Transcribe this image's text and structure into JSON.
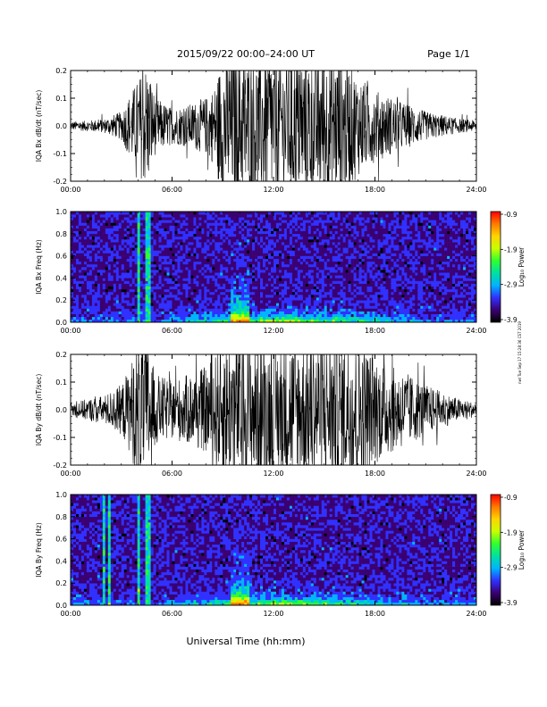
{
  "header": {
    "title": "2015/09/22   00:00–24:00 UT",
    "page": "Page 1/1"
  },
  "side_stamp": "nwl Tue Sep 17 15:28:36 CST 2019",
  "xlabel_main": "Universal Time (hh:mm)",
  "colors": {
    "colorbar_stops": [
      "#000000",
      "#3a0072",
      "#3030ff",
      "#00b4ff",
      "#00e0a0",
      "#30ff30",
      "#c8ff00",
      "#ffd400",
      "#ff7a00",
      "#ff0000"
    ],
    "trace": "#000000",
    "axis": "#000000"
  },
  "chart_data": [
    {
      "type": "line",
      "title": "",
      "ylabel": "IQA Bx dB/dt (nT/sec)",
      "xlabel": "",
      "xlim": [
        0,
        24
      ],
      "ylim": [
        -0.2,
        0.2
      ],
      "x_ticks": [
        "00:00",
        "06:00",
        "12:00",
        "18:00",
        "24:00"
      ],
      "y_ticks": [
        "-0.2",
        "-0.1",
        "0.0",
        "0.1",
        "0.2"
      ],
      "series": [
        {
          "x": [
            0,
            1,
            2,
            3,
            3.5,
            4,
            4.5,
            5,
            6,
            7,
            8,
            8.5,
            9,
            9.5,
            10,
            11,
            12,
            13,
            14,
            15,
            16,
            17,
            18,
            19,
            20,
            21,
            22,
            23,
            24
          ],
          "values": [
            0.012,
            0.015,
            0.02,
            0.04,
            0.09,
            0.13,
            0.18,
            0.08,
            0.05,
            0.06,
            0.08,
            0.11,
            0.2,
            0.2,
            0.2,
            0.2,
            0.2,
            0.2,
            0.2,
            0.2,
            0.2,
            0.14,
            0.1,
            0.08,
            0.06,
            0.04,
            0.03,
            0.02,
            0.015
          ]
        }
      ]
    },
    {
      "type": "heatmap",
      "title": "",
      "ylabel": "IQA Bx Freq (Hz)",
      "xlabel": "",
      "xlim": [
        0,
        24
      ],
      "ylim": [
        0,
        1.0
      ],
      "x_ticks": [
        "00:00",
        "06:00",
        "12:00",
        "18:00",
        "24:00"
      ],
      "y_ticks": [
        "0.0",
        "0.2",
        "0.4",
        "0.6",
        "0.8",
        "1.0"
      ],
      "colorbar": {
        "label": "Log₁₀ Power",
        "range": [
          -3.9,
          -0.9
        ],
        "ticks": [
          "-0.9",
          "-1.9",
          "-2.9",
          "-3.9"
        ]
      },
      "vertical_features_hours": [
        4.0,
        4.6
      ],
      "enhanced_band_hours": [
        9.5,
        10.6
      ]
    },
    {
      "type": "line",
      "title": "",
      "ylabel": "IQA By dB/dt (nT/sec)",
      "xlabel": "",
      "xlim": [
        0,
        24
      ],
      "ylim": [
        -0.2,
        0.2
      ],
      "x_ticks": [
        "00:00",
        "06:00",
        "12:00",
        "18:00",
        "24:00"
      ],
      "y_ticks": [
        "-0.2",
        "-0.1",
        "0.0",
        "0.1",
        "0.2"
      ],
      "series": [
        {
          "x": [
            0,
            1,
            2,
            3,
            3.5,
            4,
            4.5,
            5,
            6,
            7,
            8,
            8.5,
            9,
            9.5,
            10,
            11,
            12,
            13,
            14,
            15,
            16,
            17,
            18,
            19,
            20,
            21,
            22,
            23,
            24
          ],
          "values": [
            0.02,
            0.03,
            0.04,
            0.07,
            0.12,
            0.2,
            0.2,
            0.1,
            0.08,
            0.1,
            0.12,
            0.15,
            0.2,
            0.2,
            0.2,
            0.2,
            0.18,
            0.2,
            0.2,
            0.2,
            0.2,
            0.2,
            0.15,
            0.12,
            0.1,
            0.07,
            0.05,
            0.03,
            0.02
          ]
        }
      ]
    },
    {
      "type": "heatmap",
      "title": "",
      "ylabel": "IQA By Freq (Hz)",
      "xlabel": "",
      "xlim": [
        0,
        24
      ],
      "ylim": [
        0,
        1.0
      ],
      "x_ticks": [
        "00:00",
        "06:00",
        "12:00",
        "18:00",
        "24:00"
      ],
      "y_ticks": [
        "0.0",
        "0.2",
        "0.4",
        "0.6",
        "0.8",
        "1.0"
      ],
      "colorbar": {
        "label": "Log₁₀ Power",
        "range": [
          -3.9,
          -0.9
        ],
        "ticks": [
          "-0.9",
          "-1.9",
          "-2.9",
          "-3.9"
        ]
      },
      "vertical_features_hours": [
        2.0,
        2.3,
        4.0,
        4.6
      ],
      "enhanced_band_hours": [
        9.5,
        10.6
      ]
    }
  ]
}
